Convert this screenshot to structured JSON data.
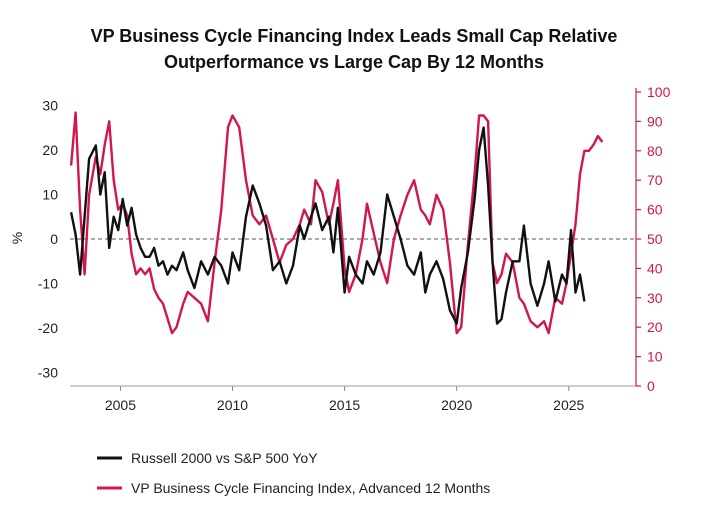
{
  "chart_data": {
    "type": "line",
    "title_lines": [
      "VP Business Cycle Financing Index Leads Small Cap Relative",
      "Outperformance vs Large Cap By 12 Months"
    ],
    "ylabel": "%",
    "y_left": {
      "range": [
        -33,
        33
      ],
      "ticks": [
        "30",
        "20",
        "10",
        "0",
        "-10",
        "-20",
        "-30"
      ],
      "tick_values": [
        30,
        20,
        10,
        0,
        -10,
        -20,
        -30
      ]
    },
    "y_right": {
      "range": [
        0,
        100
      ],
      "ticks": [
        "100",
        "90",
        "80",
        "70",
        "60",
        "50",
        "40",
        "30",
        "20",
        "10",
        "0"
      ],
      "tick_values": [
        100,
        90,
        80,
        70,
        60,
        50,
        40,
        30,
        20,
        10,
        0
      ]
    },
    "x_range": [
      2002.75,
      2028.0
    ],
    "x_ticks": [
      "2005",
      "2010",
      "2015",
      "2020",
      "2025"
    ],
    "x_tick_values": [
      2005,
      2010,
      2015,
      2020,
      2025
    ],
    "zero_line": 0,
    "colors": {
      "russell": "#111111",
      "vp": "#d11848",
      "axis_right": "#d11848",
      "zero": "#555555"
    },
    "series": [
      {
        "name": "Russell 2000 vs S&P 500 YoY",
        "axis": "left",
        "x": [
          2002.8,
          2003.0,
          2003.2,
          2003.4,
          2003.6,
          2003.9,
          2004.1,
          2004.3,
          2004.5,
          2004.7,
          2004.9,
          2005.1,
          2005.3,
          2005.5,
          2005.7,
          2005.9,
          2006.1,
          2006.3,
          2006.5,
          2006.7,
          2006.9,
          2007.1,
          2007.3,
          2007.5,
          2007.8,
          2008.0,
          2008.3,
          2008.6,
          2008.9,
          2009.2,
          2009.5,
          2009.8,
          2010.0,
          2010.3,
          2010.6,
          2010.9,
          2011.2,
          2011.5,
          2011.8,
          2012.1,
          2012.4,
          2012.7,
          2013.0,
          2013.2,
          2013.5,
          2013.7,
          2014.0,
          2014.3,
          2014.5,
          2014.7,
          2015.0,
          2015.2,
          2015.5,
          2015.8,
          2016.0,
          2016.3,
          2016.6,
          2016.9,
          2017.2,
          2017.5,
          2017.8,
          2018.1,
          2018.4,
          2018.6,
          2018.8,
          2019.1,
          2019.4,
          2019.7,
          2020.0,
          2020.2,
          2020.5,
          2020.8,
          2021.0,
          2021.2,
          2021.4,
          2021.6,
          2021.8,
          2022.0,
          2022.2,
          2022.5,
          2022.8,
          2023.0,
          2023.3,
          2023.6,
          2023.9,
          2024.1,
          2024.4,
          2024.7,
          2024.9,
          2025.1,
          2025.3,
          2025.5,
          2025.7
        ],
        "values": [
          6,
          1,
          -8,
          5,
          18,
          21,
          10,
          15,
          -2,
          5,
          2,
          9,
          3,
          7,
          1,
          -2,
          -4,
          -4,
          -2,
          -6,
          -5,
          -8,
          -6,
          -7,
          -3,
          -7,
          -11,
          -5,
          -8,
          -4,
          -6,
          -10,
          -3,
          -7,
          5,
          12,
          8,
          3,
          -7,
          -5,
          -10,
          -6,
          3,
          0,
          5,
          8,
          2,
          5,
          -3,
          7,
          -12,
          -4,
          -8,
          -10,
          -5,
          -8,
          -3,
          10,
          5,
          0,
          -6,
          -8,
          -3,
          -12,
          -8,
          -5,
          -9,
          -16,
          -19,
          -11,
          -3,
          9,
          20,
          25,
          12,
          -5,
          -19,
          -18,
          -12,
          -5,
          -5,
          3,
          -10,
          -15,
          -10,
          -5,
          -14,
          -8,
          -10,
          2,
          -12,
          -8,
          -14
        ]
      },
      {
        "name": "VP Business Cycle Financing Index, Advanced 12 Months",
        "axis": "right",
        "x": [
          2002.8,
          2003.0,
          2003.2,
          2003.4,
          2003.6,
          2003.9,
          2004.1,
          2004.3,
          2004.5,
          2004.7,
          2004.9,
          2005.1,
          2005.3,
          2005.5,
          2005.7,
          2005.9,
          2006.1,
          2006.3,
          2006.5,
          2006.7,
          2006.9,
          2007.1,
          2007.3,
          2007.5,
          2007.8,
          2008.0,
          2008.3,
          2008.6,
          2008.9,
          2009.2,
          2009.5,
          2009.8,
          2010.0,
          2010.3,
          2010.6,
          2010.9,
          2011.2,
          2011.5,
          2011.8,
          2012.1,
          2012.4,
          2012.7,
          2013.0,
          2013.2,
          2013.5,
          2013.7,
          2014.0,
          2014.3,
          2014.5,
          2014.7,
          2015.0,
          2015.2,
          2015.5,
          2015.8,
          2016.0,
          2016.3,
          2016.6,
          2016.9,
          2017.2,
          2017.5,
          2017.8,
          2018.1,
          2018.4,
          2018.6,
          2018.8,
          2019.1,
          2019.4,
          2019.7,
          2020.0,
          2020.2,
          2020.5,
          2020.8,
          2021.0,
          2021.2,
          2021.4,
          2021.6,
          2021.8,
          2022.0,
          2022.2,
          2022.5,
          2022.8,
          2023.0,
          2023.3,
          2023.6,
          2023.9,
          2024.1,
          2024.4,
          2024.7,
          2024.9,
          2025.1,
          2025.3,
          2025.5,
          2025.7,
          2025.9,
          2026.1,
          2026.3,
          2026.5
        ],
        "values": [
          75,
          93,
          60,
          38,
          65,
          78,
          72,
          82,
          90,
          70,
          60,
          62,
          58,
          45,
          38,
          40,
          38,
          40,
          33,
          30,
          28,
          23,
          18,
          20,
          28,
          32,
          30,
          28,
          22,
          42,
          60,
          88,
          92,
          88,
          70,
          58,
          55,
          58,
          50,
          42,
          48,
          50,
          55,
          60,
          55,
          70,
          66,
          55,
          62,
          70,
          40,
          32,
          38,
          50,
          62,
          52,
          42,
          35,
          50,
          58,
          65,
          70,
          60,
          58,
          55,
          65,
          60,
          42,
          18,
          20,
          48,
          72,
          92,
          92,
          90,
          42,
          35,
          38,
          45,
          42,
          30,
          28,
          22,
          20,
          22,
          18,
          30,
          28,
          35,
          45,
          55,
          72,
          80,
          80,
          82,
          85,
          83
        ]
      }
    ],
    "legend": [
      {
        "label": "Russell 2000 vs S&P 500 YoY",
        "color": "#111111"
      },
      {
        "label": "VP Business Cycle Financing Index, Advanced 12 Months",
        "color": "#d11848"
      }
    ]
  }
}
